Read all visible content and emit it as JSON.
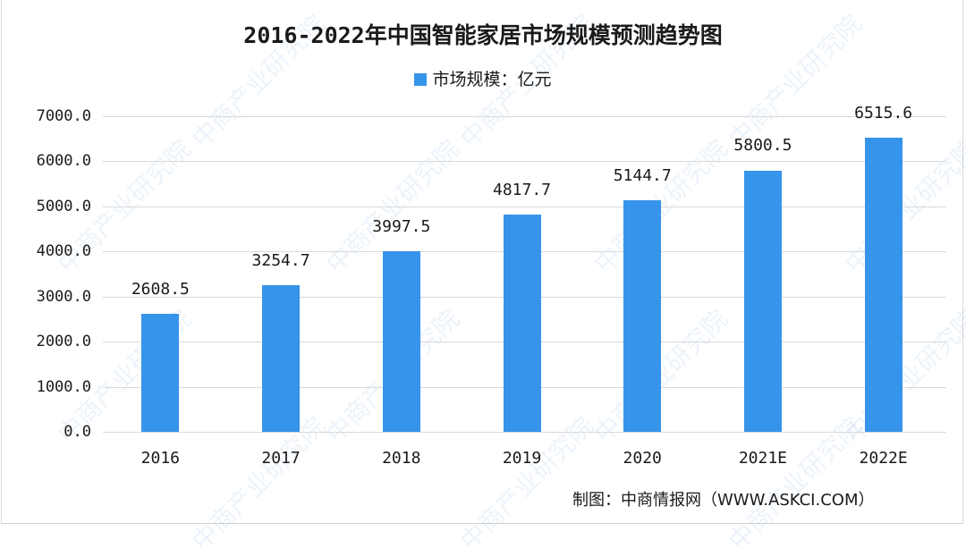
{
  "title": "2016-2022年中国智能家居市场规模预测趋势图",
  "legend": {
    "label": "市场规模：亿元",
    "color": "#3694ea"
  },
  "source": "制图：中商情报网（WWW.ASKCI.COM）",
  "watermark": "中商产业研究院",
  "y_ticks": [
    "7000.0",
    "6000.0",
    "5000.0",
    "4000.0",
    "3000.0",
    "2000.0",
    "1000.0",
    "0.0"
  ],
  "chart_data": {
    "type": "bar",
    "title": "2016-2022年中国智能家居市场规模预测趋势图",
    "categories": [
      "2016",
      "2017",
      "2018",
      "2019",
      "2020",
      "2021E",
      "2022E"
    ],
    "series": [
      {
        "name": "市场规模：亿元",
        "values": [
          2608.5,
          3254.7,
          3997.5,
          4817.7,
          5144.7,
          5800.5,
          6515.6
        ],
        "color": "#3694ea"
      }
    ],
    "value_labels": [
      "2608.5",
      "3254.7",
      "3997.5",
      "4817.7",
      "5144.7",
      "5800.5",
      "6515.6"
    ],
    "xlabel": "",
    "ylabel": "",
    "ylim": [
      0,
      7000
    ],
    "y_tick_step": 1000,
    "grid": true,
    "legend_position": "top"
  }
}
